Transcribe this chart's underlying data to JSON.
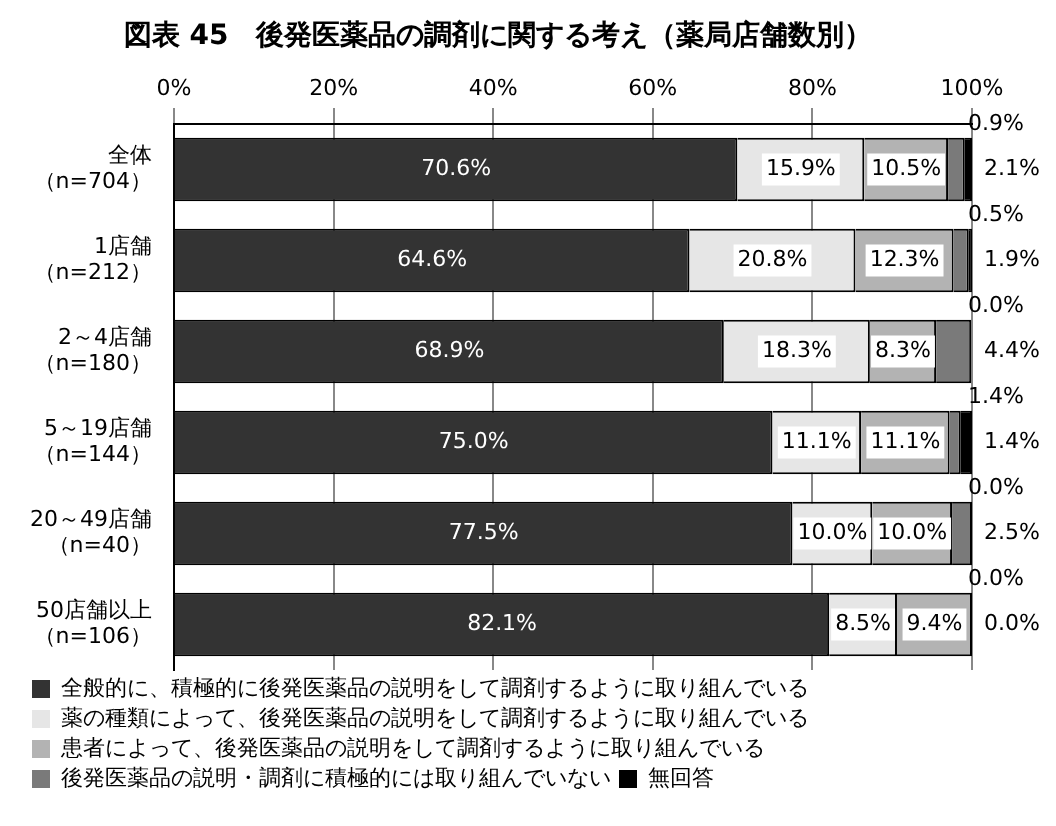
{
  "chart_data": {
    "type": "bar",
    "orientation": "horizontal",
    "stacked": true,
    "title": "図表 45　後発医薬品の調剤に関する考え（薬局店舗数別）",
    "categories": [
      "全体（n=704）",
      "1店舗（n=212）",
      "2～4店舗（n=180）",
      "5～19店舗（n=144）",
      "20～49店舗（n=40）",
      "50店舗以上（n=106）"
    ],
    "series": [
      {
        "name": "全般的に、積極的に後発医薬品の説明をして調剤するように取り組んでいる",
        "color": "#333333",
        "values": [
          70.6,
          64.6,
          68.9,
          75.0,
          77.5,
          82.1
        ],
        "value_labels": [
          "70.6%",
          "64.6%",
          "68.9%",
          "75.0%",
          "77.5%",
          "82.1%"
        ]
      },
      {
        "name": "薬の種類によって、後発医薬品の説明をして調剤するように取り組んでいる",
        "color": "#e6e6e6",
        "values": [
          15.9,
          20.8,
          18.3,
          11.1,
          10.0,
          8.5
        ],
        "value_labels": [
          "15.9%",
          "20.8%",
          "18.3%",
          "11.1%",
          "10.0%",
          "8.5%"
        ]
      },
      {
        "name": "患者によって、後発医薬品の説明をして調剤するように取り組んでいる",
        "color": "#b3b3b3",
        "values": [
          10.5,
          12.3,
          8.3,
          11.1,
          10.0,
          9.4
        ],
        "value_labels": [
          "10.5%",
          "12.3%",
          "8.3%",
          "11.1%",
          "10.0%",
          "9.4%"
        ]
      },
      {
        "name": "後発医薬品の説明・調剤に積極的には取り組んでいない",
        "color": "#7a7a7a",
        "values": [
          2.1,
          1.9,
          4.4,
          1.4,
          2.5,
          0.0
        ],
        "value_labels": [
          "2.1%",
          "1.9%",
          "4.4%",
          "1.4%",
          "2.5%",
          "0.0%"
        ]
      },
      {
        "name": "無回答",
        "color": "#000000",
        "values": [
          0.9,
          0.5,
          0.0,
          1.4,
          0.0,
          0.0
        ],
        "value_labels": [
          "0.9%",
          "0.5%",
          "0.0%",
          "1.4%",
          "0.0%",
          "0.0%"
        ]
      }
    ],
    "xlim": [
      0,
      100
    ],
    "xticks": [
      {
        "value": 0,
        "label": "0%"
      },
      {
        "value": 20,
        "label": "20%"
      },
      {
        "value": 40,
        "label": "40%"
      },
      {
        "value": 60,
        "label": "60%"
      },
      {
        "value": 80,
        "label": "80%"
      },
      {
        "value": 100,
        "label": "100%"
      }
    ],
    "grid": "x",
    "legend": "bottom"
  }
}
